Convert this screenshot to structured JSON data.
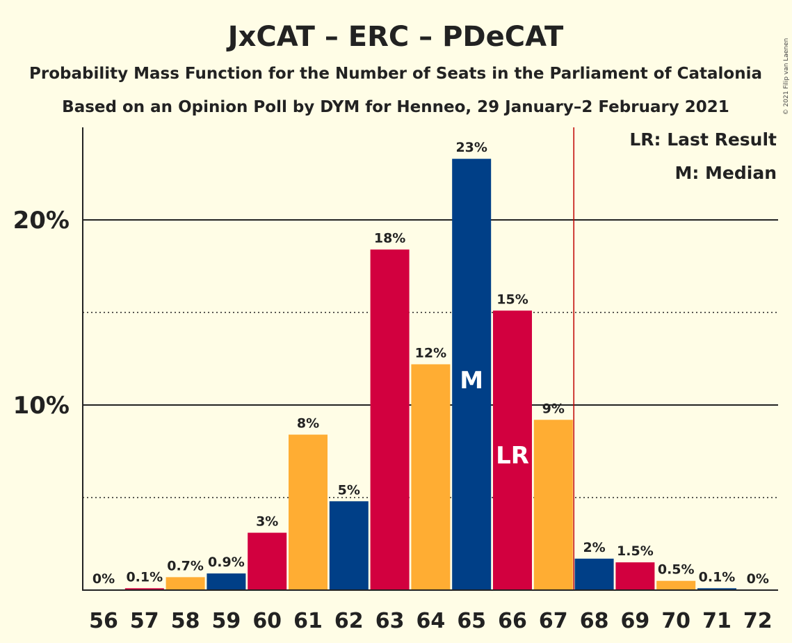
{
  "chart_data": {
    "type": "bar",
    "title": "JxCAT – ERC – PDeCAT",
    "subtitle1": "Probability Mass Function for the Number of Seats in the Parliament of Catalonia",
    "subtitle2": "Based on an Opinion Poll by DYM for Henneo, 29 January–2 February 2021",
    "copyright": "© 2021 Filip van Laenen",
    "categories": [
      "56",
      "57",
      "58",
      "59",
      "60",
      "61",
      "62",
      "63",
      "64",
      "65",
      "66",
      "67",
      "68",
      "69",
      "70",
      "71",
      "72"
    ],
    "values": [
      0,
      0.1,
      0.7,
      0.9,
      3.1,
      8.4,
      4.8,
      18.4,
      12.2,
      23.3,
      15.1,
      9.2,
      1.7,
      1.5,
      0.5,
      0.1,
      0
    ],
    "value_labels": [
      "0%",
      "0.1%",
      "0.7%",
      "0.9%",
      "3%",
      "8%",
      "5%",
      "18%",
      "12%",
      "23%",
      "15%",
      "9%",
      "2%",
      "1.5%",
      "0.5%",
      "0.1%",
      "0%"
    ],
    "bar_colors": [
      "#ffffff",
      "#d2003f",
      "#ffad33",
      "#003f87",
      "#d2003f",
      "#ffad33",
      "#003f87",
      "#d2003f",
      "#ffad33",
      "#003f87",
      "#d2003f",
      "#ffad33",
      "#003f87",
      "#d2003f",
      "#ffad33",
      "#003f87",
      "#ffffff"
    ],
    "ylim": [
      0,
      25
    ],
    "yticks": [
      {
        "value": 10,
        "label": "10%"
      },
      {
        "value": 20,
        "label": "20%"
      }
    ],
    "dotted_gridlines": [
      5,
      15
    ],
    "last_result_line_after": "67",
    "last_result_line_color": "#c00000",
    "median_category": "65",
    "median_marker": "M",
    "last_result_category": "66",
    "last_result_marker": "LR",
    "legend": {
      "placement": "top-right",
      "items": [
        "LR: Last Result",
        "M: Median"
      ]
    }
  }
}
